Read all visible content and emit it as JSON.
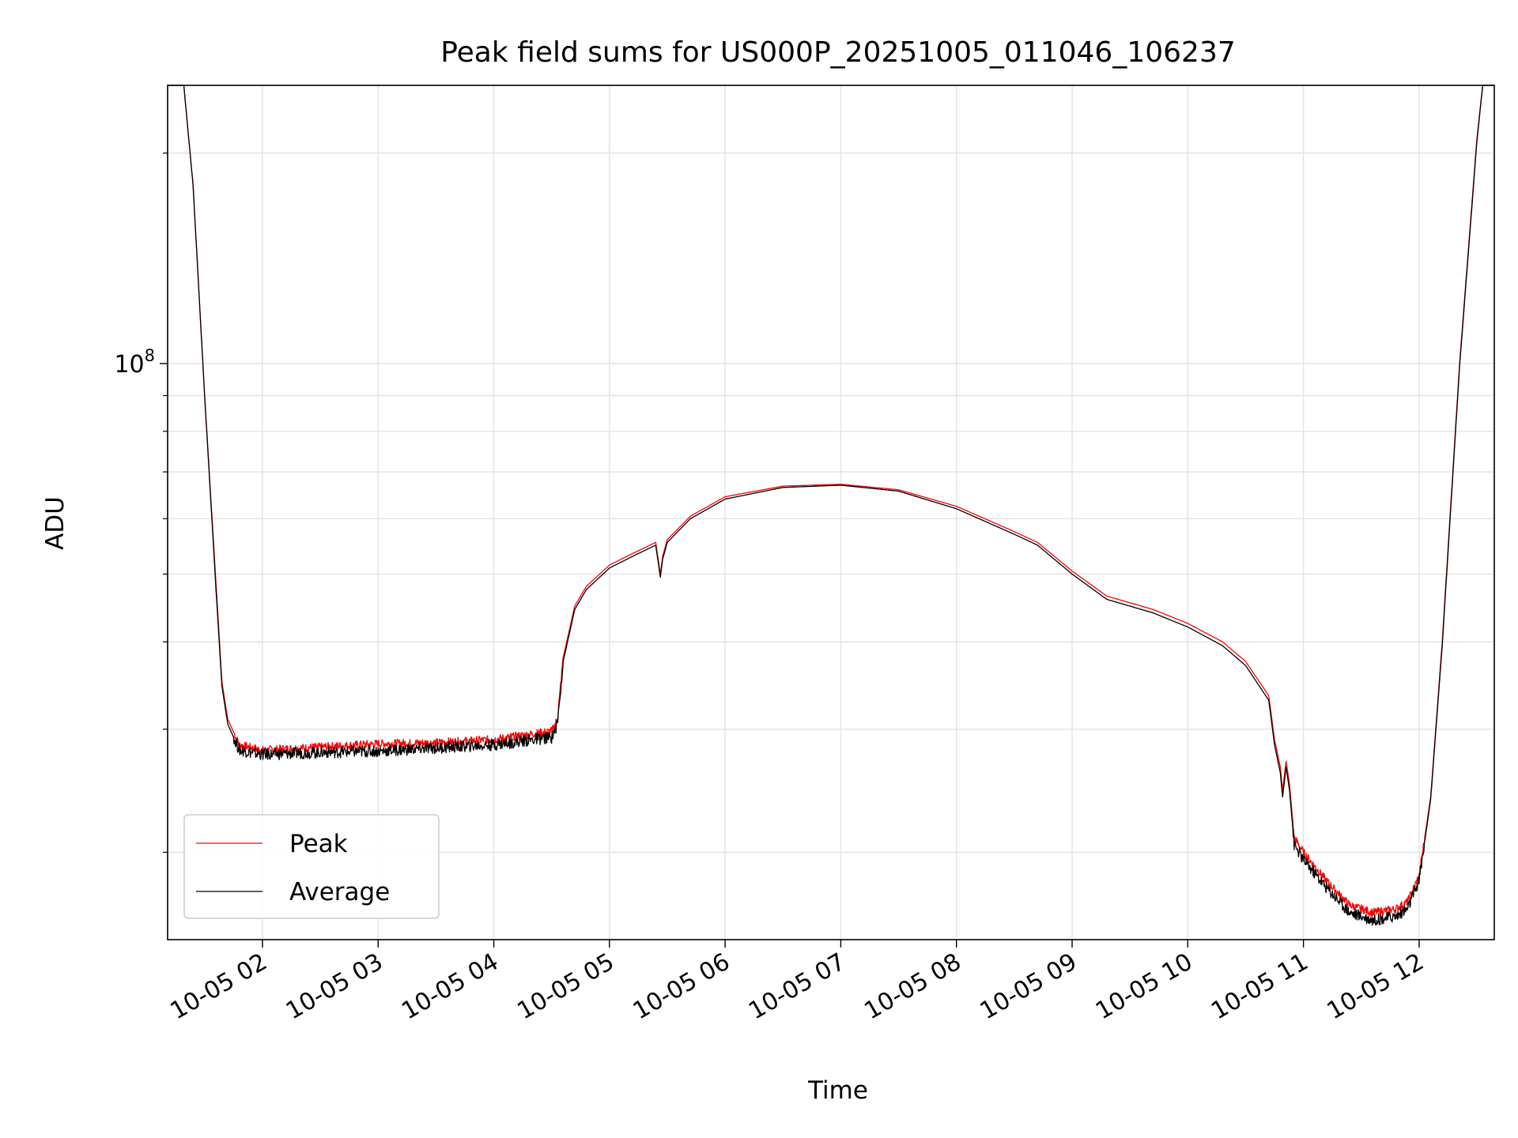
{
  "chart_data": {
    "type": "line",
    "title": "Peak field sums for US000P_20251005_011046_106237",
    "xlabel": "Time",
    "ylabel": "ADU",
    "yscale": "log",
    "ylim": [
      15000000,
      250000000
    ],
    "xlim_hours": [
      1.18,
      12.65
    ],
    "grid": true,
    "legend_position": "lower-left",
    "y_tick_major": {
      "value": 100000000,
      "base": "10",
      "exp": "8"
    },
    "y_minor_ticks": [
      20000000,
      30000000,
      40000000,
      50000000,
      60000000,
      70000000,
      80000000,
      90000000,
      200000000
    ],
    "x_ticks": [
      {
        "hour": 2,
        "label": "10-05 02"
      },
      {
        "hour": 3,
        "label": "10-05 03"
      },
      {
        "hour": 4,
        "label": "10-05 04"
      },
      {
        "hour": 5,
        "label": "10-05 05"
      },
      {
        "hour": 6,
        "label": "10-05 06"
      },
      {
        "hour": 7,
        "label": "10-05 07"
      },
      {
        "hour": 8,
        "label": "10-05 08"
      },
      {
        "hour": 9,
        "label": "10-05 09"
      },
      {
        "hour": 10,
        "label": "10-05 10"
      },
      {
        "hour": 11,
        "label": "10-05 11"
      },
      {
        "hour": 12,
        "label": "10-05 12"
      }
    ],
    "series": [
      {
        "name": "Peak",
        "color": "#ff0000",
        "x_hours": [
          1.18,
          1.32,
          1.4,
          1.5,
          1.6,
          1.65,
          1.7,
          1.8,
          2.0,
          2.5,
          3.0,
          3.5,
          4.0,
          4.5,
          4.55,
          4.6,
          4.7,
          4.8,
          5.0,
          5.2,
          5.4,
          5.44,
          5.46,
          5.5,
          5.7,
          6.0,
          6.5,
          7.0,
          7.5,
          8.0,
          8.5,
          8.7,
          9.0,
          9.3,
          9.7,
          10.0,
          10.3,
          10.5,
          10.7,
          10.75,
          10.8,
          10.82,
          10.85,
          10.88,
          10.92,
          11.0,
          11.2,
          11.4,
          11.6,
          11.8,
          11.9,
          12.0,
          12.1,
          12.2,
          12.35,
          12.5,
          12.55,
          12.65
        ],
        "values": [
          250000000,
          250000000,
          180000000,
          90000000,
          48000000,
          35000000,
          31000000,
          28500000,
          28000000,
          28300000,
          28600000,
          28700000,
          29000000,
          29800000,
          31000000,
          38000000,
          45000000,
          48000000,
          51500000,
          53500000,
          55500000,
          50000000,
          53000000,
          56000000,
          60500000,
          64500000,
          66800000,
          67200000,
          66000000,
          62500000,
          57500000,
          55500000,
          50500000,
          46500000,
          44500000,
          42500000,
          40000000,
          37500000,
          33500000,
          29000000,
          26500000,
          24500000,
          27000000,
          25000000,
          21000000,
          20000000,
          18200000,
          16800000,
          16400000,
          16600000,
          17000000,
          18500000,
          24000000,
          40000000,
          100000000,
          210000000,
          250000000,
          250000000
        ]
      },
      {
        "name": "Average",
        "color": "#000000",
        "x_hours": [
          1.18,
          1.32,
          1.4,
          1.5,
          1.6,
          1.65,
          1.7,
          1.8,
          2.0,
          2.5,
          3.0,
          3.5,
          4.0,
          4.5,
          4.55,
          4.6,
          4.7,
          4.8,
          5.0,
          5.2,
          5.4,
          5.44,
          5.46,
          5.5,
          5.7,
          6.0,
          6.5,
          7.0,
          7.5,
          8.0,
          8.5,
          8.7,
          9.0,
          9.3,
          9.7,
          10.0,
          10.3,
          10.5,
          10.7,
          10.75,
          10.8,
          10.82,
          10.85,
          10.88,
          10.92,
          11.0,
          11.2,
          11.4,
          11.6,
          11.8,
          11.9,
          12.0,
          12.1,
          12.2,
          12.35,
          12.5,
          12.55,
          12.65
        ],
        "values": [
          250000000,
          250000000,
          180000000,
          90000000,
          47000000,
          34500000,
          30500000,
          28000000,
          27600000,
          27800000,
          27900000,
          28200000,
          28500000,
          29200000,
          30500000,
          37500000,
          44500000,
          47500000,
          51000000,
          53000000,
          55000000,
          49500000,
          52500000,
          55500000,
          60000000,
          64000000,
          66500000,
          67000000,
          65700000,
          62000000,
          57000000,
          55000000,
          50000000,
          46000000,
          44000000,
          42000000,
          39500000,
          37000000,
          33000000,
          28500000,
          26000000,
          24000000,
          26500000,
          24500000,
          20500000,
          19500000,
          17800000,
          16400000,
          16000000,
          16200000,
          16600000,
          18200000,
          23800000,
          39500000,
          99000000,
          208000000,
          250000000,
          250000000
        ]
      }
    ]
  }
}
